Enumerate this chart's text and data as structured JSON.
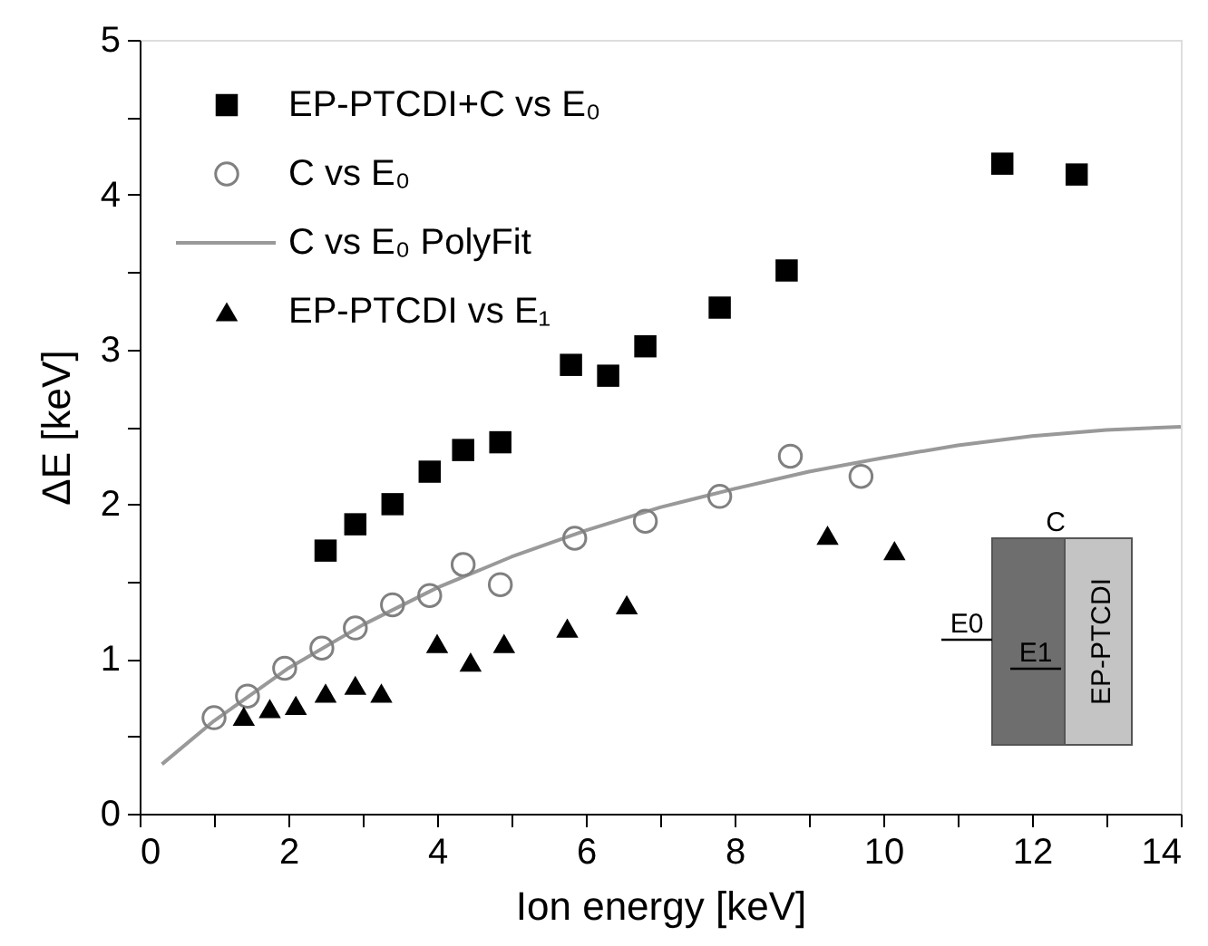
{
  "chart_data": {
    "type": "scatter",
    "xlabel": "Ion energy [keV]",
    "ylabel": "ΔE [keV]",
    "xlim": [
      0,
      14
    ],
    "ylim": [
      0,
      5
    ],
    "xticks": [
      0,
      {
        "value": 1,
        "label": null
      },
      2,
      {
        "value": 3,
        "label": null
      },
      4,
      {
        "value": 5,
        "label": null
      },
      6,
      {
        "value": 7,
        "label": null
      },
      8,
      {
        "value": 9,
        "label": null
      },
      10,
      {
        "value": 11,
        "label": null
      },
      12,
      {
        "value": 13,
        "label": null
      },
      14
    ],
    "yticks": [
      0,
      {
        "value": 0.5,
        "label": null
      },
      1,
      {
        "value": 1.5,
        "label": null
      },
      2,
      {
        "value": 2.5,
        "label": null
      },
      3,
      {
        "value": 3.5,
        "label": null
      },
      4,
      {
        "value": 4.5,
        "label": null
      },
      5
    ],
    "grid": false,
    "legend": "top left",
    "series": [
      {
        "name": "EP-PTCDI+C vs E₀",
        "marker": "square",
        "color": "#000000",
        "x": [
          2.5,
          2.9,
          3.4,
          3.9,
          4.35,
          4.85,
          5.8,
          6.3,
          6.8,
          7.8,
          8.7,
          11.6,
          12.6
        ],
        "values": [
          1.7,
          1.87,
          2.0,
          2.21,
          2.35,
          2.4,
          2.9,
          2.83,
          3.02,
          3.27,
          3.51,
          4.2,
          4.13
        ]
      },
      {
        "name": "C vs E₀",
        "marker": "circle",
        "color": "#808080",
        "x": [
          1.0,
          1.45,
          1.95,
          2.45,
          2.9,
          3.4,
          3.9,
          4.35,
          4.85,
          5.85,
          6.8,
          7.8,
          8.75,
          9.7
        ],
        "values": [
          0.62,
          0.76,
          0.94,
          1.07,
          1.2,
          1.35,
          1.41,
          1.61,
          1.48,
          1.78,
          1.89,
          2.05,
          2.31,
          2.18
        ]
      },
      {
        "name": "C vs E₀ PolyFit",
        "type": "line",
        "marker": "none",
        "line_style": "solid",
        "color": "#999999",
        "x": [
          0.3,
          1,
          2,
          3,
          4,
          5,
          6,
          7,
          8,
          9,
          10,
          11,
          12,
          13,
          14
        ],
        "values": [
          0.32,
          0.6,
          0.94,
          1.22,
          1.46,
          1.66,
          1.83,
          1.98,
          2.1,
          2.21,
          2.3,
          2.38,
          2.44,
          2.48,
          2.5
        ]
      },
      {
        "name": "EP-PTCDI vs E₁",
        "marker": "triangle",
        "color": "#000000",
        "x": [
          1.4,
          1.75,
          2.1,
          2.5,
          2.9,
          3.25,
          4.0,
          4.45,
          4.9,
          5.75,
          6.55,
          9.25,
          10.15
        ],
        "values": [
          0.63,
          0.68,
          0.7,
          0.78,
          0.83,
          0.78,
          1.1,
          0.98,
          1.1,
          1.2,
          1.35,
          1.8,
          1.7
        ]
      }
    ],
    "annotations": [
      "C",
      "E0",
      "E1",
      "EP-PTCDI"
    ]
  }
}
